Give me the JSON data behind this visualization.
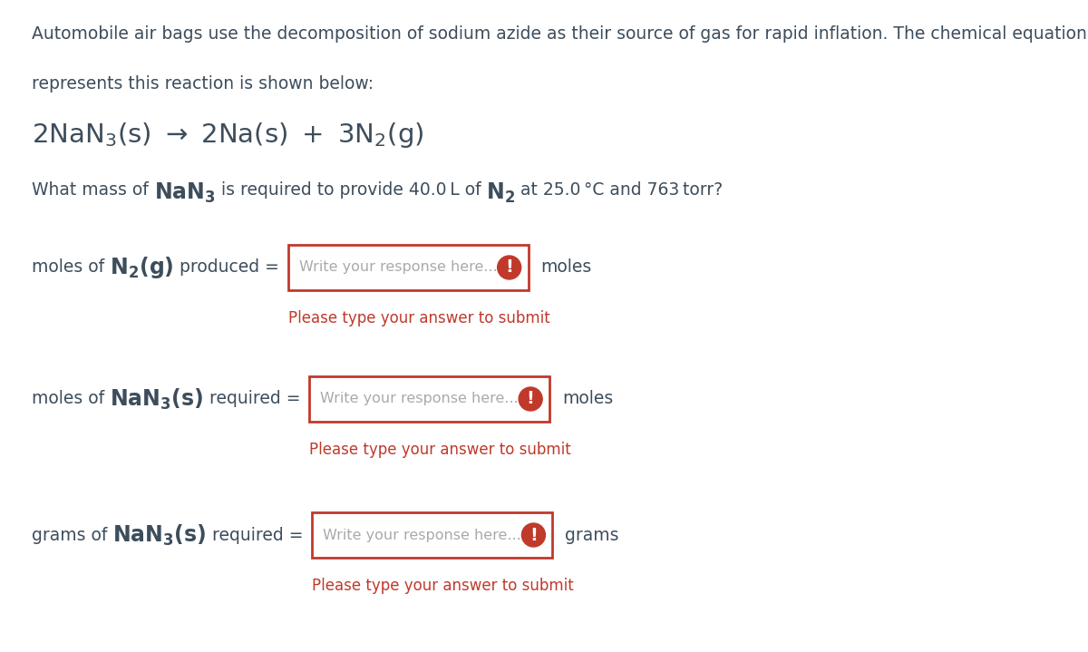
{
  "background_color": "#ffffff",
  "dark_text_color": "#3d4d5c",
  "red_color": "#c0392b",
  "placeholder_color": "#aaaaaa",
  "paragraph1": "Automobile air bags use the decomposition of sodium azide as their source of gas for rapid inflation. The chemical equation hat",
  "paragraph2": "represents this reaction is shown below:",
  "field1_label_plain": "moles of ",
  "field1_label_chem": "N_2(g)",
  "field1_label_end": "produced =",
  "field1_unit": "moles",
  "field2_label_plain": "moles of ",
  "field2_label_chem": "NaN_3(s)",
  "field2_label_end": "required =",
  "field2_unit": "moles",
  "field3_label_plain": "grams of ",
  "field3_label_chem": "NaN_3(s)",
  "field3_label_end": "required =",
  "field3_unit": "grams",
  "placeholder": "Write your response here...",
  "submit_text": "Please type your answer to submit",
  "body_fs": 13.5,
  "chem_label_fs": 17,
  "eq_fs": 21,
  "question_fs": 13.5,
  "question_chem_fs": 17
}
